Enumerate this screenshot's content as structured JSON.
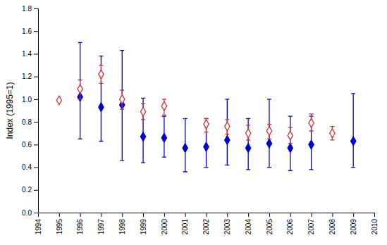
{
  "chart_data": {
    "type": "scatter",
    "ylabel": "Index (1995=1)",
    "x": [
      1995,
      1996,
      1997,
      1998,
      1999,
      2000,
      2001,
      2002,
      2003,
      2004,
      2005,
      2006,
      2007,
      2008,
      2009
    ],
    "series": [
      {
        "color": "#0000cc",
        "marker": "diamond",
        "values": [
          null,
          1.02,
          0.93,
          0.95,
          0.67,
          0.66,
          0.57,
          0.58,
          0.64,
          0.57,
          0.61,
          0.57,
          0.6,
          null,
          0.63
        ],
        "lower": [
          null,
          0.65,
          0.63,
          0.46,
          0.44,
          0.49,
          0.36,
          0.4,
          0.42,
          0.38,
          0.4,
          0.37,
          0.38,
          null,
          0.4
        ],
        "upper": [
          null,
          1.5,
          1.38,
          1.43,
          1.01,
          0.85,
          0.83,
          0.83,
          1.0,
          0.83,
          1.0,
          0.85,
          0.85,
          null,
          1.05
        ]
      },
      {
        "color": "#cc3333",
        "marker": "diamond-open",
        "values": [
          0.99,
          1.09,
          1.22,
          1.0,
          0.89,
          0.94,
          null,
          0.78,
          0.76,
          0.7,
          0.72,
          0.68,
          0.79,
          0.7,
          null
        ],
        "lower": [
          null,
          1.0,
          1.14,
          0.91,
          0.82,
          0.86,
          null,
          0.71,
          0.69,
          0.64,
          0.65,
          0.61,
          0.72,
          0.64,
          null
        ],
        "upper": [
          null,
          1.17,
          1.3,
          1.08,
          0.96,
          1.0,
          null,
          0.83,
          0.82,
          0.77,
          0.78,
          0.75,
          0.87,
          0.76,
          null
        ]
      }
    ],
    "xlim": [
      1994,
      2010
    ],
    "xticks": [
      1994,
      1995,
      1996,
      1997,
      1998,
      1999,
      2000,
      2001,
      2002,
      2003,
      2004,
      2005,
      2006,
      2007,
      2008,
      2009,
      2010
    ],
    "ylim": [
      0.0,
      1.8
    ],
    "yticks": [
      {
        "value": 0.0,
        "label": "0.0"
      },
      {
        "value": 0.2,
        "label": "0.2"
      },
      {
        "value": 0.4,
        "label": "0.4"
      },
      {
        "value": 0.6,
        "label": "0.6"
      },
      {
        "value": 0.8,
        "label": "0.8"
      },
      {
        "value": 1.0,
        "label": "1.0"
      },
      {
        "value": 1.2,
        "label": "1.2"
      },
      {
        "value": 1.4,
        "label": "1.4"
      },
      {
        "value": 1.6,
        "label": "1.6"
      },
      {
        "value": 1.8,
        "label": "1.8"
      }
    ],
    "grid": false
  }
}
